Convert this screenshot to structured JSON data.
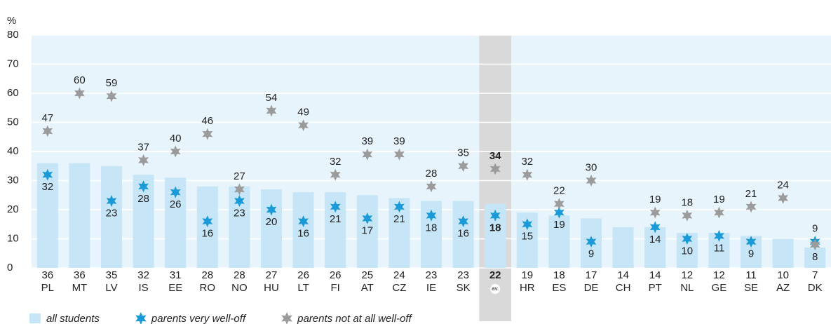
{
  "chart_data": {
    "type": "bar",
    "y_unit": "%",
    "categories": [
      "PL",
      "MT",
      "LV",
      "IS",
      "EE",
      "RO",
      "NO",
      "HU",
      "LT",
      "FI",
      "AT",
      "CZ",
      "IE",
      "SK",
      "av.",
      "HR",
      "ES",
      "DE",
      "CH",
      "PT",
      "NL",
      "GE",
      "SE",
      "AZ",
      "DK"
    ],
    "highlight_category": "av.",
    "series": [
      {
        "name": "all students",
        "color": "#c6e5f6",
        "marker": "bar",
        "values": [
          36,
          36,
          35,
          32,
          31,
          28,
          28,
          27,
          26,
          26,
          25,
          24,
          23,
          23,
          22,
          19,
          18,
          17,
          14,
          14,
          12,
          12,
          11,
          10,
          7
        ]
      },
      {
        "name": "parents very well-off",
        "color": "#1a9ad6",
        "marker": "star",
        "values": [
          32,
          null,
          23,
          28,
          26,
          16,
          23,
          20,
          16,
          21,
          17,
          21,
          18,
          16,
          18,
          15,
          19,
          9,
          null,
          14,
          10,
          11,
          9,
          null,
          9
        ]
      },
      {
        "name": "parents not at all well-off",
        "color": "#9b9b9b",
        "marker": "star",
        "values": [
          47,
          60,
          59,
          37,
          40,
          46,
          27,
          54,
          49,
          32,
          39,
          39,
          28,
          35,
          34,
          32,
          22,
          30,
          null,
          19,
          18,
          19,
          21,
          24,
          8
        ]
      }
    ],
    "ylim": [
      0,
      80
    ],
    "yticks": [
      0,
      10,
      20,
      30,
      40,
      50,
      60,
      70,
      80
    ],
    "grid": true
  }
}
